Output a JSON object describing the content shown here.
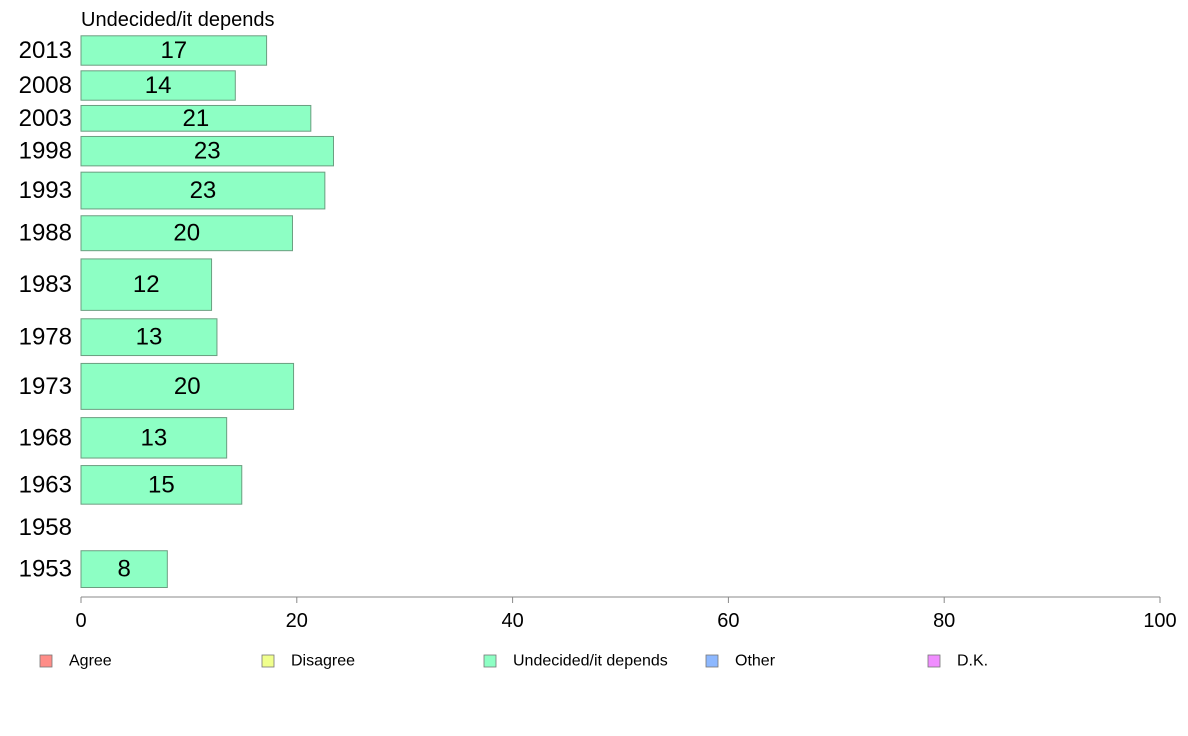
{
  "chart_data": {
    "type": "bar",
    "orientation": "horizontal",
    "title": "Undecided/it depends",
    "categories": [
      "2013",
      "2008",
      "2003",
      "1998",
      "1993",
      "1988",
      "1983",
      "1978",
      "1973",
      "1968",
      "1963",
      "1958",
      "1953"
    ],
    "series": [
      {
        "name": "Undecided/it depends",
        "values": [
          17,
          14,
          21,
          23,
          23,
          20,
          12,
          13,
          20,
          13,
          15,
          null,
          8
        ],
        "bar_lengths": [
          17.2,
          14.3,
          21.3,
          23.4,
          22.6,
          19.6,
          12.1,
          12.6,
          19.7,
          13.5,
          14.9,
          null,
          8.0
        ],
        "relative_band_size": [
          0.8,
          0.8,
          0.7,
          0.8,
          1.0,
          0.95,
          1.4,
          1.0,
          1.25,
          1.1,
          1.05,
          0.9,
          1.0
        ],
        "color": "#8dffc4"
      }
    ],
    "xlim": [
      0,
      100
    ],
    "xticks": [
      0,
      20,
      40,
      60,
      80,
      100
    ],
    "xlabel": "",
    "ylabel": "",
    "grid": false,
    "legend": {
      "placement": "bottom",
      "entries": [
        {
          "label": "Agree",
          "color": "#ff8d88"
        },
        {
          "label": "Disagree",
          "color": "#f0ff8d"
        },
        {
          "label": "Undecided/it depends",
          "color": "#8dffc4"
        },
        {
          "label": "Other",
          "color": "#8db8ff"
        },
        {
          "label": "D.K.",
          "color": "#f08dff"
        }
      ]
    }
  }
}
